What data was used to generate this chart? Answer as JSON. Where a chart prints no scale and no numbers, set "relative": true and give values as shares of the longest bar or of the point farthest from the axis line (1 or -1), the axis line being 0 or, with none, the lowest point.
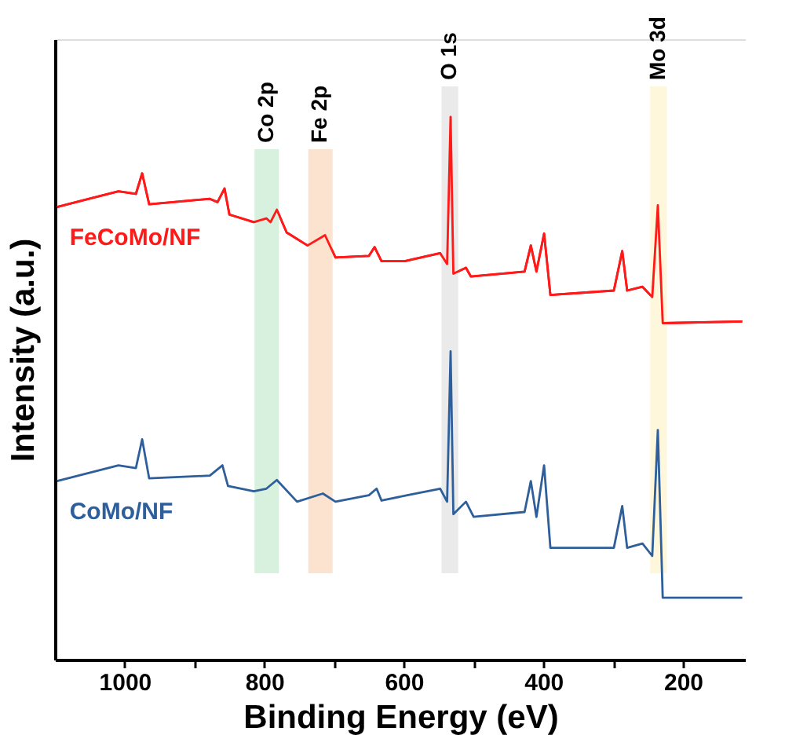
{
  "chart_data": {
    "type": "line",
    "relative": true,
    "xlabel": "Binding Energy (eV)",
    "ylabel": "Intensity (a.u.)",
    "xlim": [
      1100,
      110
    ],
    "xticks": [
      1000,
      {
        "value": 900,
        "label": null
      },
      800,
      {
        "value": 700,
        "label": null
      },
      600,
      {
        "value": 500,
        "label": null
      },
      400,
      {
        "value": 300,
        "label": null
      },
      200
    ],
    "tick_labels": "x",
    "grid": false,
    "legend": false,
    "line_style": "solid",
    "marker": "none",
    "series": [
      {
        "name": "FeCoMo/NF",
        "color": "#ff1a1a",
        "x": [
          1097,
          1009,
          984,
          975,
          965,
          878,
          867,
          857,
          850,
          815,
          797,
          791,
          782,
          768,
          738,
          713,
          698,
          650,
          642,
          632,
          599,
          548,
          538,
          533,
          529,
          511,
          504,
          427,
          418,
          410,
          399,
          390,
          299,
          287,
          280,
          258,
          244,
          236,
          229,
          115
        ],
        "values": [
          0.834,
          0.863,
          0.858,
          0.896,
          0.839,
          0.849,
          0.843,
          0.868,
          0.82,
          0.806,
          0.813,
          0.806,
          0.829,
          0.787,
          0.763,
          0.782,
          0.741,
          0.744,
          0.76,
          0.734,
          0.734,
          0.749,
          0.729,
          1.0,
          0.711,
          0.722,
          0.706,
          0.715,
          0.763,
          0.715,
          0.785,
          0.672,
          0.68,
          0.753,
          0.68,
          0.687,
          0.668,
          0.837,
          0.62,
          0.623
        ]
      },
      {
        "name": "CoMo/NF",
        "color": "#2f5f9a",
        "x": [
          1097,
          1009,
          984,
          975,
          965,
          878,
          860,
          852,
          815,
          797,
          782,
          753,
          716,
          698,
          650,
          639,
          632,
          595,
          548,
          538,
          533,
          529,
          511,
          500,
          427,
          418,
          410,
          399,
          390,
          299,
          287,
          280,
          258,
          244,
          236,
          229,
          115
        ],
        "values": [
          0.329,
          0.358,
          0.353,
          0.406,
          0.334,
          0.339,
          0.358,
          0.32,
          0.31,
          0.315,
          0.331,
          0.291,
          0.306,
          0.291,
          0.303,
          0.315,
          0.293,
          0.303,
          0.315,
          0.291,
          0.568,
          0.268,
          0.291,
          0.263,
          0.272,
          0.329,
          0.263,
          0.358,
          0.206,
          0.206,
          0.283,
          0.206,
          0.214,
          0.191,
          0.423,
          0.114,
          0.114
        ]
      }
    ],
    "bands": [
      {
        "axis": "x",
        "from": 814,
        "to": 779,
        "label": "Co 2p",
        "color": "#d3f0da"
      },
      {
        "axis": "x",
        "from": 737,
        "to": 702,
        "label": "Fe 2p",
        "color": "#fbe0cb"
      },
      {
        "axis": "x",
        "from": 546,
        "to": 522,
        "label": "O 1s",
        "color": "#e8e8e8"
      },
      {
        "axis": "x",
        "from": 247,
        "to": 223,
        "label": "Mo 3d",
        "color": "#fff6d8"
      }
    ]
  }
}
